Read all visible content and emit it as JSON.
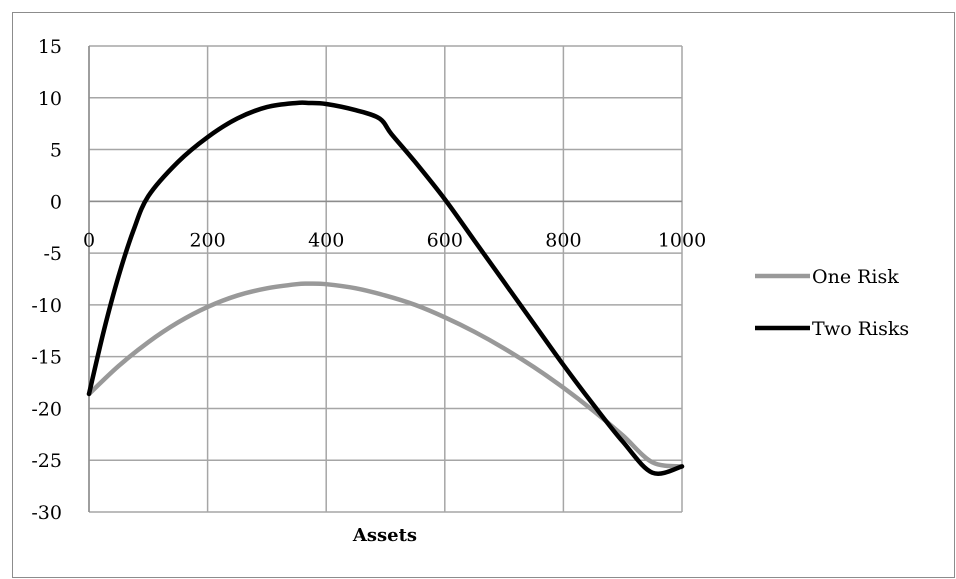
{
  "chart_data": {
    "type": "line",
    "title": "",
    "xlabel": "Assets",
    "ylabel": "",
    "xlim": [
      0,
      1000
    ],
    "ylim": [
      -30,
      15
    ],
    "xticks": [
      0,
      200,
      400,
      600,
      800,
      1000
    ],
    "yticks": [
      15,
      10,
      5,
      0,
      -5,
      -10,
      -15,
      -20,
      -25,
      -30
    ],
    "xtick_labels": [
      "0",
      "200",
      "400",
      "600",
      "800",
      "1000"
    ],
    "ytick_labels": [
      "15",
      "10",
      "5",
      "0",
      "-5",
      "-10",
      "-15",
      "-20",
      "-25",
      "-30"
    ],
    "grid": true,
    "legend_position": "right",
    "series": [
      {
        "name": "One Risk",
        "color": "#999999",
        "x": [
          0,
          50,
          100,
          150,
          200,
          250,
          300,
          350,
          370,
          400,
          450,
          500,
          550,
          600,
          650,
          700,
          750,
          800,
          850,
          900,
          950,
          1000
        ],
        "y": [
          -18.6,
          -15.9,
          -13.6,
          -11.7,
          -10.2,
          -9.1,
          -8.4,
          -8.0,
          -7.95,
          -8.0,
          -8.4,
          -9.1,
          -10.0,
          -11.2,
          -12.6,
          -14.2,
          -16.0,
          -18.0,
          -20.2,
          -22.6,
          -25.2,
          -25.6
        ]
      },
      {
        "name": "Two Risks",
        "color": "#000000",
        "x": [
          0,
          25,
          50,
          75,
          100,
          150,
          200,
          250,
          300,
          350,
          370,
          400,
          450,
          490,
          510,
          550,
          600,
          650,
          700,
          750,
          800,
          850,
          900,
          950,
          1000
        ],
        "y": [
          -18.6,
          -12.5,
          -7.2,
          -2.8,
          0.5,
          3.8,
          6.2,
          8.0,
          9.1,
          9.5,
          9.5,
          9.4,
          8.8,
          8.0,
          6.5,
          3.8,
          0.2,
          -3.8,
          -7.8,
          -11.8,
          -15.8,
          -19.6,
          -23.2,
          -26.2,
          -25.6
        ]
      }
    ]
  }
}
